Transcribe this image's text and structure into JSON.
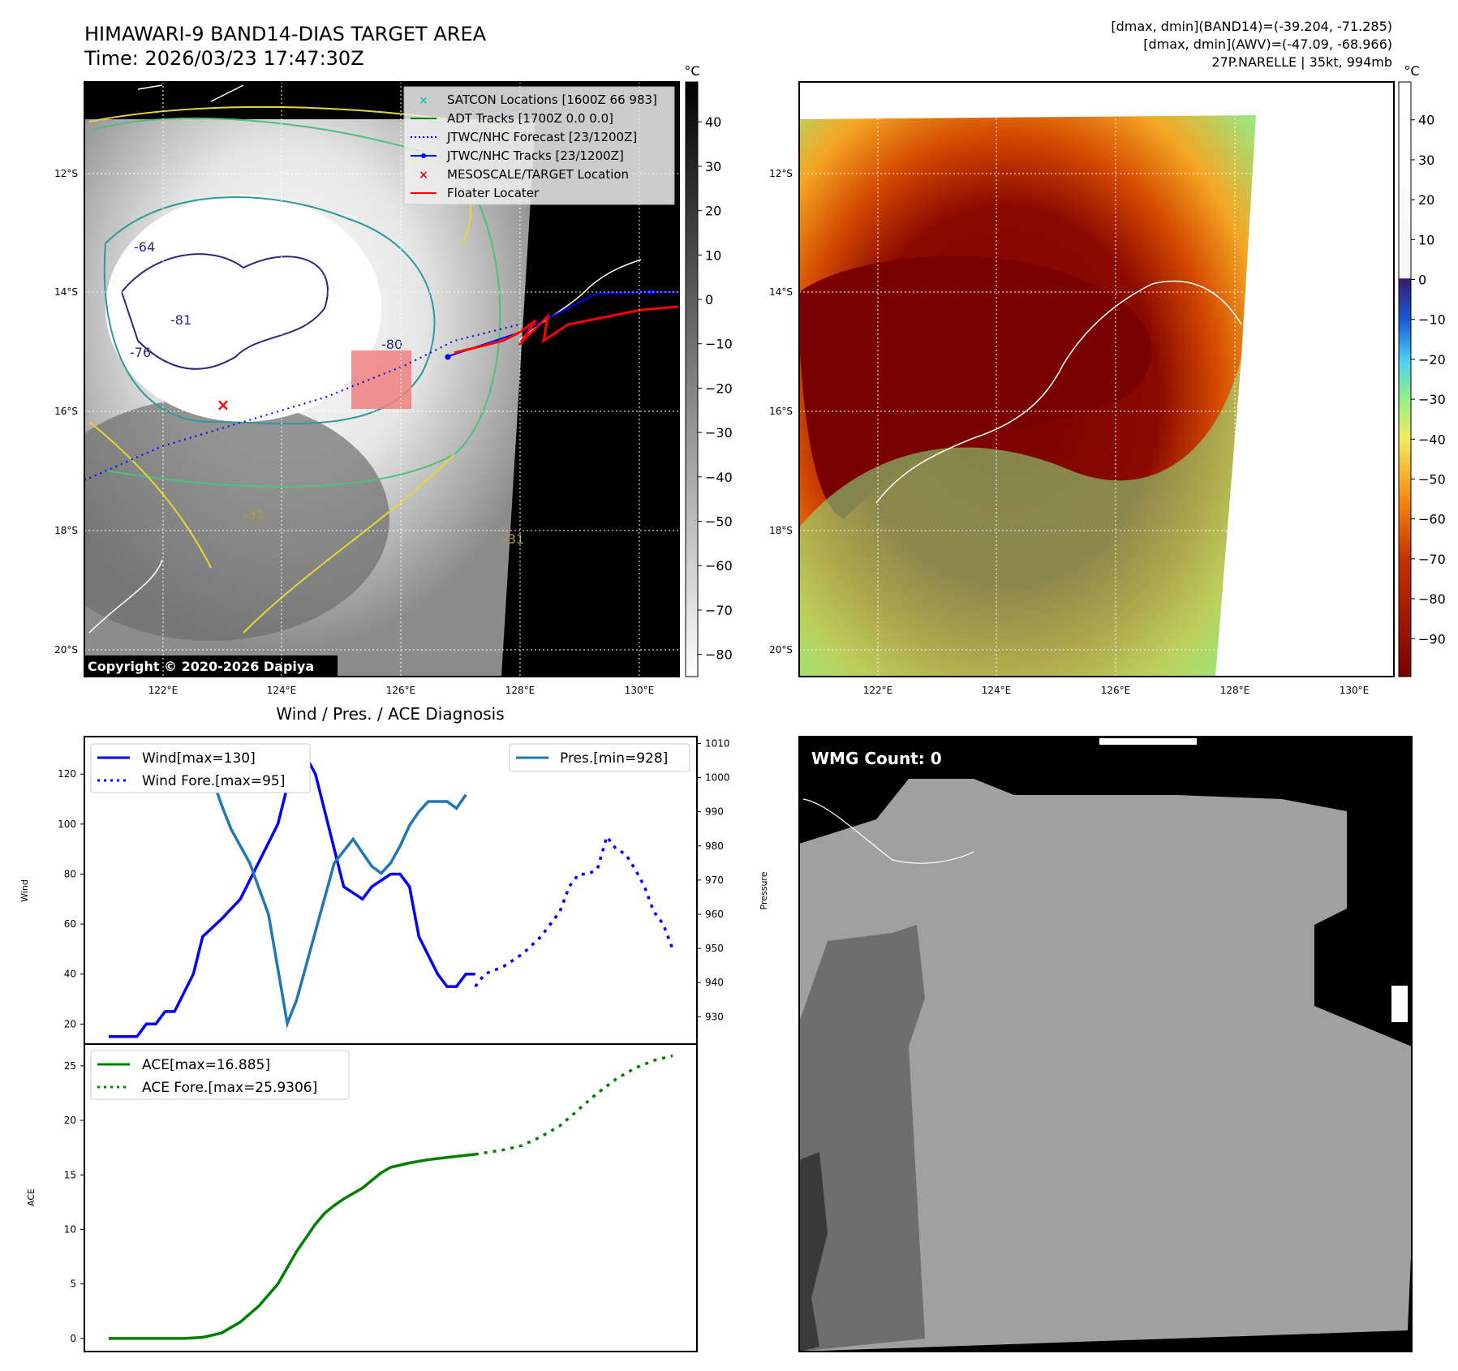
{
  "header": {
    "title_line1": "HIMAWARI-9 BAND14-DIAS TARGET AREA",
    "title_line2": "Time: 2026/03/23 17:47:30Z",
    "info_line1": "[dmax, dmin](BAND14)=(-39.204, -71.285)",
    "info_line2": "[dmax, dmin](AWV)=(-47.09, -68.966)",
    "info_line3": "27P.NARELLE | 35kt, 994mb"
  },
  "map": {
    "lat_labels": [
      "12°S",
      "14°S",
      "16°S",
      "18°S",
      "20°S"
    ],
    "lon_labels": [
      "122°E",
      "124°E",
      "126°E",
      "128°E",
      "130°E"
    ],
    "copyright": "Copyright © 2020-2026 Dapiya",
    "contour_labels": [
      "-64",
      "-81",
      "-76",
      "-80",
      "-31",
      "-31"
    ],
    "legend": [
      {
        "label": "SATCON Locations [1600Z 66 983]",
        "color": "#20c0c0",
        "style": "x"
      },
      {
        "label": "ADT Tracks [1700Z 0.0 0.0]",
        "color": "#008000",
        "style": "line"
      },
      {
        "label": "JTWC/NHC Forecast [23/1200Z]",
        "color": "#0000ff",
        "style": "dotted"
      },
      {
        "label": "JTWC/NHC Tracks [23/1200Z]",
        "color": "#0000ff",
        "style": "line-dot"
      },
      {
        "label": "MESOSCALE/TARGET Location",
        "color": "#ff0000",
        "style": "x"
      },
      {
        "label": "Floater Locater",
        "color": "#ff0000",
        "style": "line"
      }
    ]
  },
  "colorbars": {
    "unit": "°C",
    "left_ticks": [
      "40",
      "30",
      "20",
      "10",
      "0",
      "−10",
      "−20",
      "−30",
      "−40",
      "−50",
      "−60",
      "−70",
      "−80"
    ],
    "right_ticks": [
      "40",
      "30",
      "20",
      "10",
      "0",
      "−10",
      "−20",
      "−30",
      "−40",
      "−50",
      "−60",
      "−70",
      "−80",
      "−90"
    ]
  },
  "wmg": {
    "count_label": "WMG Count: 0"
  },
  "chart_data": [
    {
      "type": "line",
      "title": "Wind / Pres. / ACE Diagnosis",
      "ylabel": "Wind",
      "y2label": "Pressure",
      "ylim": [
        12,
        135
      ],
      "y2lim": [
        922,
        1012
      ],
      "yticks": [
        20,
        40,
        60,
        80,
        100,
        120
      ],
      "y2ticks": [
        930,
        940,
        950,
        960,
        970,
        980,
        990,
        1000,
        1010
      ],
      "xlim": [
        0,
        60
      ],
      "series": [
        {
          "name": "Wind[max=130]",
          "color": "#0000ff",
          "style": "solid",
          "x": [
            0,
            3,
            4,
            5,
            6,
            7,
            9,
            10,
            12,
            14,
            16,
            18,
            20,
            21,
            22,
            24,
            25,
            27,
            28,
            30,
            31,
            32,
            33,
            35,
            36,
            37,
            38,
            39
          ],
          "values": [
            15,
            15,
            20,
            20,
            25,
            25,
            40,
            55,
            62,
            70,
            85,
            100,
            130,
            127,
            120,
            90,
            75,
            70,
            75,
            80,
            80,
            75,
            55,
            40,
            35,
            35,
            40,
            40
          ]
        },
        {
          "name": "Wind Fore.[max=95]",
          "color": "#0000ff",
          "style": "dotted",
          "x": [
            39,
            40,
            42,
            44,
            46,
            48,
            49,
            50,
            51,
            52,
            53,
            54,
            55,
            56,
            57,
            58,
            59,
            60
          ],
          "values": [
            35,
            40,
            43,
            48,
            55,
            65,
            75,
            80,
            80,
            82,
            95,
            90,
            88,
            82,
            75,
            65,
            60,
            50
          ]
        },
        {
          "name": "Pres.[min=928]",
          "color": "#1f77b4",
          "style": "solid",
          "axis": "right",
          "x": [
            0,
            2,
            3,
            4,
            5,
            7,
            9,
            11,
            12,
            13,
            14,
            15,
            17,
            19,
            20,
            21,
            22,
            23,
            24,
            26,
            27,
            28,
            29,
            30,
            31,
            32,
            33,
            34,
            35,
            36,
            37,
            38
          ],
          "values": [
            1008,
            1008,
            1003,
            1004,
            1003,
            1002,
            1002,
            1000,
            992,
            985,
            980,
            975,
            960,
            928,
            935,
            945,
            955,
            965,
            975,
            982,
            978,
            974,
            972,
            975,
            980,
            986,
            990,
            993,
            993,
            993,
            991,
            995
          ]
        }
      ]
    },
    {
      "type": "line",
      "ylabel": "ACE",
      "ylim": [
        -1.2,
        27
      ],
      "yticks": [
        0,
        5,
        10,
        15,
        20,
        25
      ],
      "xlim": [
        0,
        60
      ],
      "series": [
        {
          "name": "ACE[max=16.885]",
          "color": "#008000",
          "style": "solid",
          "x": [
            0,
            2,
            4,
            6,
            8,
            10,
            12,
            14,
            16,
            18,
            20,
            22,
            23,
            24,
            25,
            26,
            27,
            28,
            29,
            30,
            32,
            34,
            36,
            38,
            39
          ],
          "values": [
            0,
            0,
            0,
            0,
            0,
            0.1,
            0.5,
            1.5,
            3,
            5,
            8,
            10.5,
            11.5,
            12.2,
            12.8,
            13.3,
            13.8,
            14.5,
            15.2,
            15.7,
            16.1,
            16.4,
            16.6,
            16.8,
            16.885
          ]
        },
        {
          "name": "ACE Fore.[max=25.9306]",
          "color": "#008000",
          "style": "dotted",
          "x": [
            39,
            42,
            44,
            46,
            48,
            50,
            52,
            54,
            56,
            58,
            60
          ],
          "values": [
            16.885,
            17.3,
            17.7,
            18.5,
            19.5,
            21,
            22.5,
            23.8,
            24.8,
            25.5,
            25.93
          ]
        }
      ]
    }
  ]
}
